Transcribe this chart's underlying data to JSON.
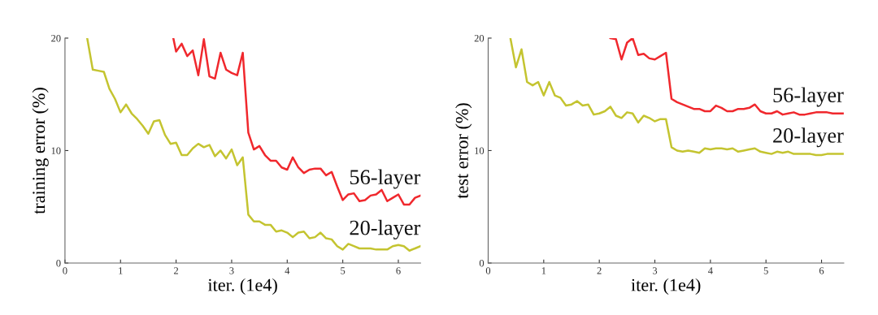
{
  "chart_data": [
    {
      "type": "line",
      "xlabel": "iter. (1e4)",
      "ylabel": "training error (%)",
      "xlim": [
        0,
        6.4
      ],
      "ylim": [
        0,
        20
      ],
      "xticks": [
        0,
        1,
        2,
        3,
        4,
        5,
        6
      ],
      "yticks": [
        0,
        10,
        20
      ],
      "grid": false,
      "legend": false,
      "series": [
        {
          "name": "56-layer",
          "color": "#f0282d",
          "x": [
            1.95,
            2.0,
            2.1,
            2.2,
            2.3,
            2.4,
            2.5,
            2.6,
            2.7,
            2.8,
            2.9,
            3.0,
            3.1,
            3.2,
            3.3,
            3.4,
            3.5,
            3.6,
            3.7,
            3.8,
            3.9,
            4.0,
            4.1,
            4.2,
            4.3,
            4.4,
            4.5,
            4.6,
            4.7,
            4.8,
            4.9,
            5.0,
            5.1,
            5.2,
            5.3,
            5.4,
            5.5,
            5.6,
            5.7,
            5.8,
            5.9,
            6.0,
            6.1,
            6.2,
            6.3,
            6.4
          ],
          "values": [
            20,
            18.8,
            19.5,
            18.4,
            18.9,
            16.7,
            19.9,
            16.6,
            16.4,
            18.7,
            17.2,
            16.9,
            16.7,
            18.7,
            11.6,
            10.1,
            10.4,
            9.6,
            9.1,
            9.1,
            8.5,
            8.3,
            9.4,
            8.5,
            8.0,
            8.3,
            8.4,
            8.4,
            7.8,
            8.1,
            6.8,
            5.6,
            6.1,
            6.2,
            5.5,
            5.6,
            6.0,
            6.1,
            6.5,
            5.5,
            5.8,
            6.1,
            5.2,
            5.2,
            5.8,
            6.0
          ]
        },
        {
          "name": "20-layer",
          "color": "#c4c430",
          "x": [
            0.4,
            0.5,
            0.6,
            0.7,
            0.8,
            0.9,
            1.0,
            1.1,
            1.2,
            1.3,
            1.4,
            1.5,
            1.6,
            1.7,
            1.8,
            1.9,
            2.0,
            2.1,
            2.2,
            2.3,
            2.4,
            2.5,
            2.6,
            2.7,
            2.8,
            2.9,
            3.0,
            3.1,
            3.2,
            3.3,
            3.4,
            3.5,
            3.6,
            3.7,
            3.8,
            3.9,
            4.0,
            4.1,
            4.2,
            4.3,
            4.4,
            4.5,
            4.6,
            4.7,
            4.8,
            4.9,
            5.0,
            5.1,
            5.2,
            5.3,
            5.4,
            5.5,
            5.6,
            5.7,
            5.8,
            5.9,
            6.0,
            6.1,
            6.2,
            6.3,
            6.4
          ],
          "values": [
            20,
            17.2,
            17.1,
            17.0,
            15.5,
            14.6,
            13.4,
            14.1,
            13.3,
            12.8,
            12.2,
            11.5,
            12.6,
            12.7,
            11.4,
            10.6,
            10.7,
            9.6,
            9.6,
            10.2,
            10.6,
            10.3,
            10.5,
            9.5,
            10.0,
            9.3,
            10.1,
            8.7,
            9.4,
            4.3,
            3.7,
            3.7,
            3.4,
            3.4,
            2.8,
            2.9,
            2.7,
            2.3,
            2.7,
            2.8,
            2.2,
            2.3,
            2.7,
            2.2,
            2.1,
            1.5,
            1.2,
            1.7,
            1.5,
            1.3,
            1.3,
            1.3,
            1.2,
            1.2,
            1.2,
            1.5,
            1.6,
            1.5,
            1.1,
            1.3,
            1.5
          ]
        }
      ]
    },
    {
      "type": "line",
      "xlabel": "iter. (1e4)",
      "ylabel": "test error (%)",
      "xlim": [
        0,
        6.4
      ],
      "ylim": [
        0,
        20
      ],
      "xticks": [
        0,
        1,
        2,
        3,
        4,
        5,
        6
      ],
      "yticks": [
        0,
        10,
        20
      ],
      "grid": false,
      "legend": false,
      "series": [
        {
          "name": "56-layer",
          "color": "#f0282d",
          "x": [
            2.2,
            2.3,
            2.4,
            2.5,
            2.6,
            2.7,
            2.8,
            2.9,
            3.0,
            3.1,
            3.2,
            3.3,
            3.4,
            3.5,
            3.6,
            3.7,
            3.8,
            3.9,
            4.0,
            4.1,
            4.2,
            4.3,
            4.4,
            4.5,
            4.6,
            4.7,
            4.8,
            4.9,
            5.0,
            5.1,
            5.2,
            5.3,
            5.4,
            5.5,
            5.6,
            5.7,
            5.8,
            5.9,
            6.0,
            6.1,
            6.2,
            6.3,
            6.4
          ],
          "values": [
            20,
            19.9,
            18.1,
            19.6,
            20,
            18.5,
            18.6,
            18.2,
            18.1,
            18.4,
            18.7,
            14.6,
            14.3,
            14.1,
            13.9,
            13.7,
            13.7,
            13.5,
            13.5,
            14.0,
            13.8,
            13.5,
            13.5,
            13.7,
            13.7,
            13.8,
            14.1,
            13.5,
            13.3,
            13.3,
            13.5,
            13.2,
            13.3,
            13.4,
            13.2,
            13.2,
            13.3,
            13.4,
            13.4,
            13.4,
            13.3,
            13.3,
            13.3
          ]
        },
        {
          "name": "20-layer",
          "color": "#c4c430",
          "x": [
            0.4,
            0.5,
            0.6,
            0.7,
            0.8,
            0.9,
            1.0,
            1.1,
            1.2,
            1.3,
            1.4,
            1.5,
            1.6,
            1.7,
            1.8,
            1.9,
            2.0,
            2.1,
            2.2,
            2.3,
            2.4,
            2.5,
            2.6,
            2.7,
            2.8,
            2.9,
            3.0,
            3.1,
            3.2,
            3.3,
            3.4,
            3.5,
            3.6,
            3.7,
            3.8,
            3.9,
            4.0,
            4.1,
            4.2,
            4.3,
            4.4,
            4.5,
            4.6,
            4.7,
            4.8,
            4.9,
            5.0,
            5.1,
            5.2,
            5.3,
            5.4,
            5.5,
            5.6,
            5.7,
            5.8,
            5.9,
            6.0,
            6.1,
            6.2,
            6.3,
            6.4
          ],
          "values": [
            20,
            17.4,
            19.0,
            16.1,
            15.8,
            16.1,
            14.9,
            16.1,
            14.9,
            14.7,
            14.0,
            14.1,
            14.4,
            14.0,
            14.1,
            13.2,
            13.3,
            13.5,
            13.9,
            13.1,
            12.9,
            13.4,
            13.3,
            12.5,
            13.1,
            12.9,
            12.6,
            12.8,
            12.8,
            10.3,
            10.0,
            9.9,
            10.0,
            9.9,
            9.8,
            10.2,
            10.1,
            10.2,
            10.2,
            10.1,
            10.2,
            9.9,
            10.0,
            10.1,
            10.2,
            9.9,
            9.8,
            9.7,
            9.9,
            9.8,
            9.9,
            9.7,
            9.7,
            9.7,
            9.7,
            9.6,
            9.6,
            9.7,
            9.7,
            9.7,
            9.7
          ]
        }
      ]
    }
  ]
}
